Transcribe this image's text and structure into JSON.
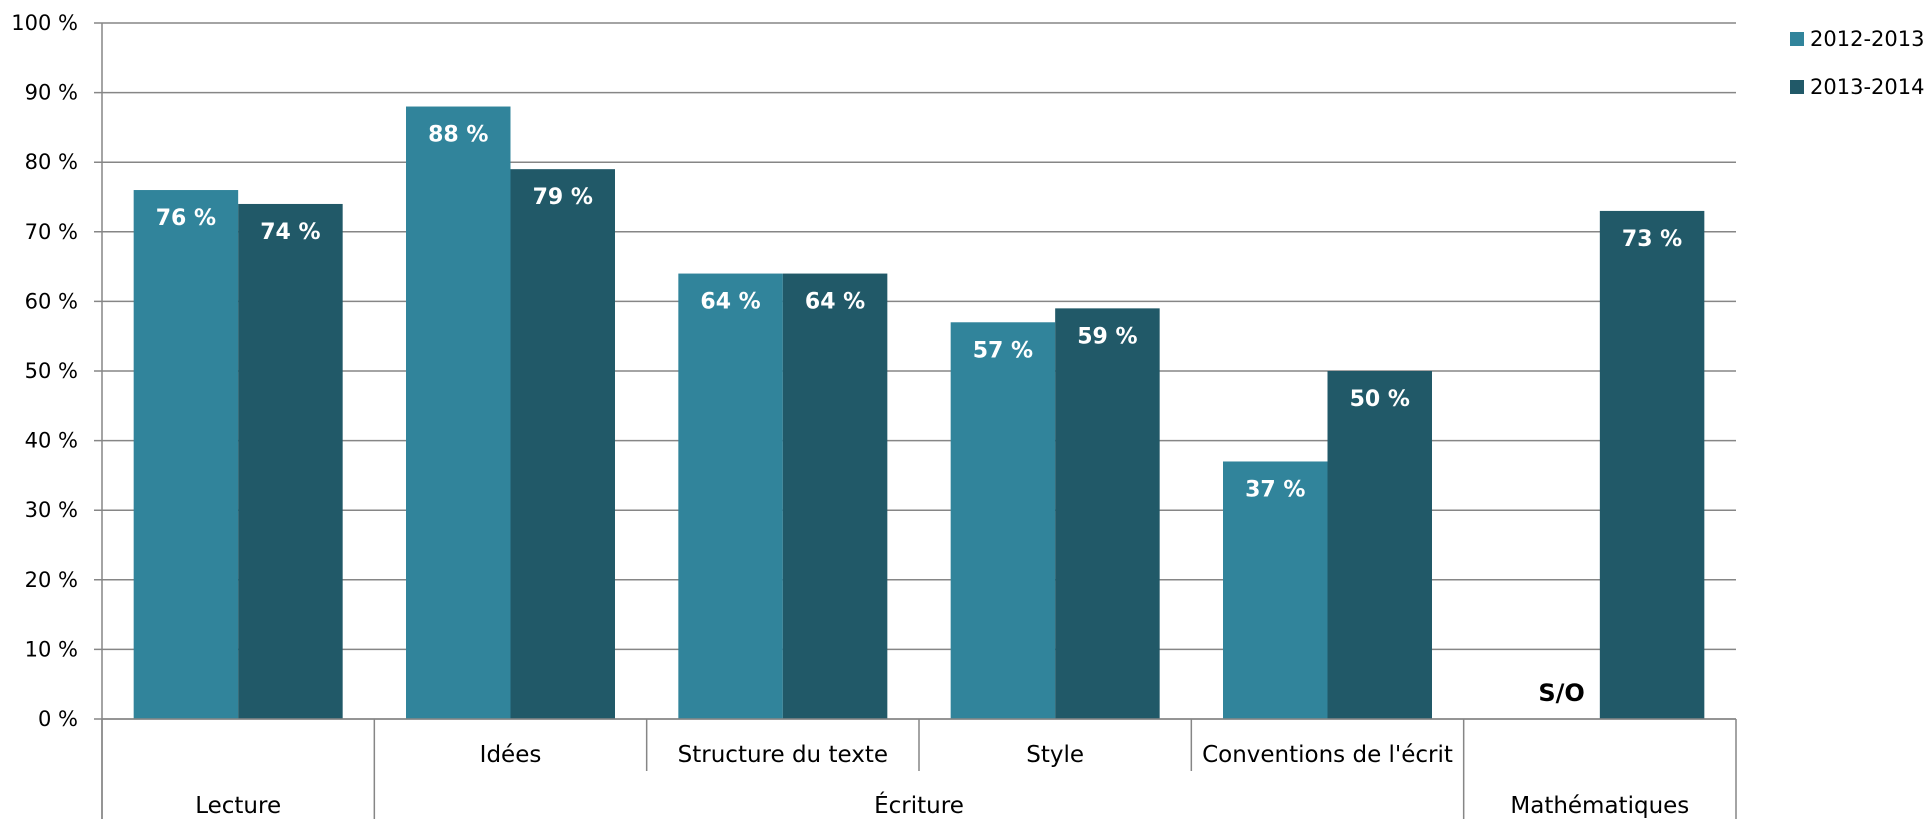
{
  "chart_data": {
    "type": "bar",
    "categories": [
      "Lecture",
      "Idées",
      "Structure du texte",
      "Style",
      "Conventions de l'écrit",
      "Mathématiques"
    ],
    "category_groups": [
      {
        "label": "Lecture",
        "subcategories": [
          ""
        ]
      },
      {
        "label": "Écriture",
        "subcategories": [
          "Idées",
          "Structure du texte",
          "Style",
          "Conventions de l'écrit"
        ]
      },
      {
        "label": "Mathématiques",
        "subcategories": [
          ""
        ]
      }
    ],
    "series": [
      {
        "name": "2012-2013",
        "color": "#31849B",
        "values": [
          76,
          88,
          64,
          57,
          37,
          null
        ],
        "labels": [
          "76 %",
          "88 %",
          "64 %",
          "57 %",
          "37 %",
          "S/O"
        ]
      },
      {
        "name": "2013-2014",
        "color": "#215968",
        "values": [
          74,
          79,
          64,
          59,
          50,
          73
        ],
        "labels": [
          "74 %",
          "79 %",
          "64 %",
          "59 %",
          "50 %",
          "73 %"
        ]
      }
    ],
    "ylim": [
      0,
      100
    ],
    "yticks": [
      "0 %",
      "10 %",
      "20 %",
      "30 %",
      "40 %",
      "50 %",
      "60 %",
      "70 %",
      "80 %",
      "90 %",
      "100 %"
    ],
    "grid": true,
    "legend_position": "top-right"
  }
}
